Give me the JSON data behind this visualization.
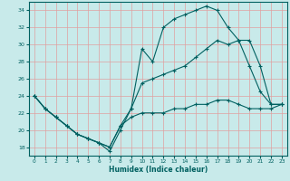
{
  "xlabel": "Humidex (Indice chaleur)",
  "xlim": [
    -0.5,
    23.5
  ],
  "ylim": [
    17,
    35
  ],
  "yticks": [
    18,
    20,
    22,
    24,
    26,
    28,
    30,
    32,
    34
  ],
  "xticks": [
    0,
    1,
    2,
    3,
    4,
    5,
    6,
    7,
    8,
    9,
    10,
    11,
    12,
    13,
    14,
    15,
    16,
    17,
    18,
    19,
    20,
    21,
    22,
    23
  ],
  "bg_color": "#c8eaea",
  "grid_color": "#e0a0a0",
  "line_color": "#006060",
  "line1_y": [
    24,
    22.5,
    21.5,
    20.5,
    19.5,
    19.0,
    18.5,
    18.0,
    20.5,
    21.5,
    22.0,
    22.0,
    22.0,
    22.5,
    22.5,
    23.0,
    23.0,
    23.5,
    23.5,
    23.0,
    22.5,
    22.5,
    22.5,
    23.0
  ],
  "line2_y": [
    24,
    22.5,
    21.5,
    20.5,
    19.5,
    19.0,
    18.5,
    18.0,
    20.5,
    22.5,
    25.5,
    26.0,
    26.5,
    27.0,
    27.5,
    28.5,
    29.5,
    30.5,
    30.0,
    30.5,
    30.5,
    27.5,
    23.0,
    23.0
  ],
  "line3_y": [
    24,
    22.5,
    21.5,
    20.5,
    19.5,
    19.0,
    18.5,
    17.5,
    20.0,
    22.5,
    29.5,
    28.0,
    32.0,
    33.0,
    33.5,
    34.0,
    34.5,
    34.0,
    32.0,
    30.5,
    27.5,
    24.5,
    23.0,
    23.0
  ]
}
